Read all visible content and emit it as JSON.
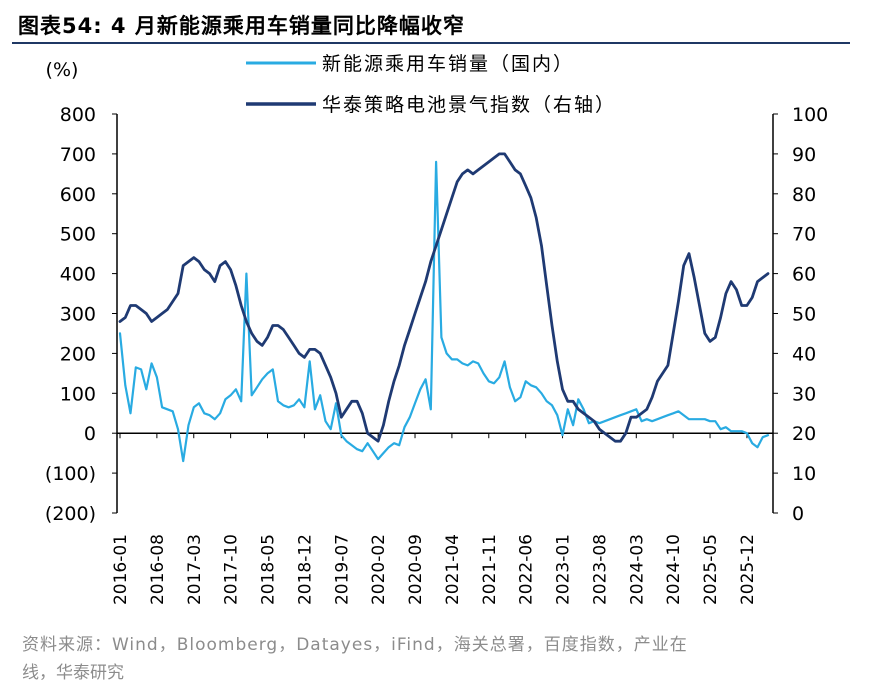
{
  "figure": {
    "title": "图表54:  4 月新能源乘用车销量同比降幅收窄",
    "source": "资料来源：Wind，Bloomberg，Datayes，iFind，海关总署，百度指数，产业在",
    "source_cut": "线，华泰研究"
  },
  "chart_data": {
    "type": "line",
    "left_axis_unit": "(%)",
    "left_ylim": [
      -200,
      800
    ],
    "left_ticks": [
      "800",
      "700",
      "600",
      "500",
      "400",
      "300",
      "200",
      "100",
      "0",
      "(100)",
      "(200)"
    ],
    "right_ylim": [
      0,
      100
    ],
    "right_ticks": [
      "100",
      "90",
      "80",
      "70",
      "60",
      "50",
      "40",
      "30",
      "20",
      "10",
      "0"
    ],
    "x_ticks": [
      "2016-01",
      "2016-08",
      "2017-03",
      "2017-10",
      "2018-05",
      "2018-12",
      "2019-07",
      "2020-02",
      "2020-09",
      "2021-04",
      "2021-11",
      "2022-06",
      "2023-01",
      "2023-08",
      "2024-03",
      "2024-10",
      "2025-05",
      "2025-12"
    ],
    "legend_placement": "top-center",
    "colors": {
      "nev_sales": "#29abe2",
      "ht_index": "#1f3a73",
      "axis": "#000000"
    },
    "series": [
      {
        "name": "新能源乘用车销量（国内）",
        "axis": "left",
        "color": "#29abe2",
        "values": [
          {
            "x": "2016-01",
            "y": 250
          },
          {
            "x": "2016-02",
            "y": 120
          },
          {
            "x": "2016-03",
            "y": 50
          },
          {
            "x": "2016-04",
            "y": 165
          },
          {
            "x": "2016-05",
            "y": 160
          },
          {
            "x": "2016-06",
            "y": 110
          },
          {
            "x": "2016-07",
            "y": 175
          },
          {
            "x": "2016-08",
            "y": 140
          },
          {
            "x": "2016-09",
            "y": 65
          },
          {
            "x": "2016-10",
            "y": 60
          },
          {
            "x": "2016-11",
            "y": 55
          },
          {
            "x": "2016-12",
            "y": 10
          },
          {
            "x": "2017-01",
            "y": -70
          },
          {
            "x": "2017-02",
            "y": 20
          },
          {
            "x": "2017-03",
            "y": 65
          },
          {
            "x": "2017-04",
            "y": 75
          },
          {
            "x": "2017-05",
            "y": 50
          },
          {
            "x": "2017-06",
            "y": 45
          },
          {
            "x": "2017-07",
            "y": 35
          },
          {
            "x": "2017-08",
            "y": 50
          },
          {
            "x": "2017-09",
            "y": 85
          },
          {
            "x": "2017-10",
            "y": 95
          },
          {
            "x": "2017-11",
            "y": 110
          },
          {
            "x": "2017-12",
            "y": 80
          },
          {
            "x": "2018-01",
            "y": 400
          },
          {
            "x": "2018-02",
            "y": 95
          },
          {
            "x": "2018-03",
            "y": 115
          },
          {
            "x": "2018-04",
            "y": 135
          },
          {
            "x": "2018-05",
            "y": 150
          },
          {
            "x": "2018-06",
            "y": 160
          },
          {
            "x": "2018-07",
            "y": 80
          },
          {
            "x": "2018-08",
            "y": 70
          },
          {
            "x": "2018-09",
            "y": 65
          },
          {
            "x": "2018-10",
            "y": 70
          },
          {
            "x": "2018-11",
            "y": 85
          },
          {
            "x": "2018-12",
            "y": 65
          },
          {
            "x": "2019-01",
            "y": 180
          },
          {
            "x": "2019-02",
            "y": 60
          },
          {
            "x": "2019-03",
            "y": 95
          },
          {
            "x": "2019-04",
            "y": 30
          },
          {
            "x": "2019-05",
            "y": 10
          },
          {
            "x": "2019-06",
            "y": 75
          },
          {
            "x": "2019-07",
            "y": -5
          },
          {
            "x": "2019-08",
            "y": -20
          },
          {
            "x": "2019-09",
            "y": -30
          },
          {
            "x": "2019-10",
            "y": -40
          },
          {
            "x": "2019-11",
            "y": -45
          },
          {
            "x": "2019-12",
            "y": -25
          },
          {
            "x": "2020-01",
            "y": -45
          },
          {
            "x": "2020-02",
            "y": -65
          },
          {
            "x": "2020-03",
            "y": -50
          },
          {
            "x": "2020-04",
            "y": -35
          },
          {
            "x": "2020-05",
            "y": -25
          },
          {
            "x": "2020-06",
            "y": -30
          },
          {
            "x": "2020-07",
            "y": 15
          },
          {
            "x": "2020-08",
            "y": 40
          },
          {
            "x": "2020-09",
            "y": 75
          },
          {
            "x": "2020-10",
            "y": 110
          },
          {
            "x": "2020-11",
            "y": 135
          },
          {
            "x": "2020-12",
            "y": 60
          },
          {
            "x": "2021-01",
            "y": 680
          },
          {
            "x": "2021-02",
            "y": 240
          },
          {
            "x": "2021-03",
            "y": 200
          },
          {
            "x": "2021-04",
            "y": 185
          },
          {
            "x": "2021-05",
            "y": 185
          },
          {
            "x": "2021-06",
            "y": 175
          },
          {
            "x": "2021-07",
            "y": 170
          },
          {
            "x": "2021-08",
            "y": 180
          },
          {
            "x": "2021-09",
            "y": 175
          },
          {
            "x": "2021-10",
            "y": 150
          },
          {
            "x": "2021-11",
            "y": 130
          },
          {
            "x": "2021-12",
            "y": 125
          },
          {
            "x": "2022-01",
            "y": 140
          },
          {
            "x": "2022-02",
            "y": 180
          },
          {
            "x": "2022-03",
            "y": 115
          },
          {
            "x": "2022-04",
            "y": 80
          },
          {
            "x": "2022-05",
            "y": 90
          },
          {
            "x": "2022-06",
            "y": 130
          },
          {
            "x": "2022-07",
            "y": 120
          },
          {
            "x": "2022-08",
            "y": 115
          },
          {
            "x": "2022-09",
            "y": 100
          },
          {
            "x": "2022-10",
            "y": 80
          },
          {
            "x": "2022-11",
            "y": 70
          },
          {
            "x": "2022-12",
            "y": 45
          },
          {
            "x": "2023-01",
            "y": -5
          },
          {
            "x": "2023-02",
            "y": 60
          },
          {
            "x": "2023-03",
            "y": 20
          },
          {
            "x": "2023-04",
            "y": 85
          },
          {
            "x": "2023-05",
            "y": 60
          },
          {
            "x": "2023-06",
            "y": 25
          },
          {
            "x": "2023-07",
            "y": 30
          },
          {
            "x": "2023-08",
            "y": 25
          },
          {
            "x": "2023-09",
            "y": 30
          },
          {
            "x": "2023-10",
            "y": 35
          },
          {
            "x": "2023-11",
            "y": 40
          },
          {
            "x": "2023-12",
            "y": 45
          },
          {
            "x": "2024-01",
            "y": 50
          },
          {
            "x": "2024-02",
            "y": 55
          },
          {
            "x": "2024-03",
            "y": 60
          },
          {
            "x": "2024-04",
            "y": 30
          },
          {
            "x": "2024-05",
            "y": 35
          },
          {
            "x": "2024-06",
            "y": 30
          },
          {
            "x": "2024-07",
            "y": 35
          },
          {
            "x": "2024-08",
            "y": 40
          },
          {
            "x": "2024-09",
            "y": 45
          },
          {
            "x": "2024-10",
            "y": 50
          },
          {
            "x": "2024-11",
            "y": 55
          },
          {
            "x": "2024-12",
            "y": 45
          },
          {
            "x": "2025-01",
            "y": 35
          },
          {
            "x": "2025-02",
            "y": 35
          },
          {
            "x": "2025-03",
            "y": 35
          },
          {
            "x": "2025-04",
            "y": 35
          },
          {
            "x": "2025-05",
            "y": 30
          },
          {
            "x": "2025-06",
            "y": 30
          },
          {
            "x": "2025-07",
            "y": 10
          },
          {
            "x": "2025-08",
            "y": 15
          },
          {
            "x": "2025-09",
            "y": 5
          },
          {
            "x": "2025-10",
            "y": 5
          },
          {
            "x": "2025-11",
            "y": 5
          },
          {
            "x": "2025-12",
            "y": 0
          },
          {
            "x": "2026-01",
            "y": -25
          },
          {
            "x": "2026-02",
            "y": -35
          },
          {
            "x": "2026-03",
            "y": -10
          },
          {
            "x": "2026-04",
            "y": -5
          }
        ]
      },
      {
        "name": "华泰策略电池景气指数（右轴）",
        "axis": "right",
        "color": "#1f3a73",
        "values": [
          {
            "x": "2016-01",
            "y": 48
          },
          {
            "x": "2016-02",
            "y": 49
          },
          {
            "x": "2016-03",
            "y": 52
          },
          {
            "x": "2016-04",
            "y": 52
          },
          {
            "x": "2016-05",
            "y": 51
          },
          {
            "x": "2016-06",
            "y": 50
          },
          {
            "x": "2016-07",
            "y": 48
          },
          {
            "x": "2016-08",
            "y": 49
          },
          {
            "x": "2016-09",
            "y": 50
          },
          {
            "x": "2016-10",
            "y": 51
          },
          {
            "x": "2016-11",
            "y": 53
          },
          {
            "x": "2016-12",
            "y": 55
          },
          {
            "x": "2017-01",
            "y": 62
          },
          {
            "x": "2017-02",
            "y": 63
          },
          {
            "x": "2017-03",
            "y": 64
          },
          {
            "x": "2017-04",
            "y": 63
          },
          {
            "x": "2017-05",
            "y": 61
          },
          {
            "x": "2017-06",
            "y": 60
          },
          {
            "x": "2017-07",
            "y": 58
          },
          {
            "x": "2017-08",
            "y": 62
          },
          {
            "x": "2017-09",
            "y": 63
          },
          {
            "x": "2017-10",
            "y": 61
          },
          {
            "x": "2017-11",
            "y": 57
          },
          {
            "x": "2017-12",
            "y": 52
          },
          {
            "x": "2018-01",
            "y": 48
          },
          {
            "x": "2018-02",
            "y": 45
          },
          {
            "x": "2018-03",
            "y": 43
          },
          {
            "x": "2018-04",
            "y": 42
          },
          {
            "x": "2018-05",
            "y": 44
          },
          {
            "x": "2018-06",
            "y": 47
          },
          {
            "x": "2018-07",
            "y": 47
          },
          {
            "x": "2018-08",
            "y": 46
          },
          {
            "x": "2018-09",
            "y": 44
          },
          {
            "x": "2018-10",
            "y": 42
          },
          {
            "x": "2018-11",
            "y": 40
          },
          {
            "x": "2018-12",
            "y": 39
          },
          {
            "x": "2019-01",
            "y": 41
          },
          {
            "x": "2019-02",
            "y": 41
          },
          {
            "x": "2019-03",
            "y": 40
          },
          {
            "x": "2019-04",
            "y": 37
          },
          {
            "x": "2019-05",
            "y": 34
          },
          {
            "x": "2019-06",
            "y": 30
          },
          {
            "x": "2019-07",
            "y": 24
          },
          {
            "x": "2019-08",
            "y": 26
          },
          {
            "x": "2019-09",
            "y": 28
          },
          {
            "x": "2019-10",
            "y": 28
          },
          {
            "x": "2019-11",
            "y": 25
          },
          {
            "x": "2019-12",
            "y": 20
          },
          {
            "x": "2020-01",
            "y": 19
          },
          {
            "x": "2020-02",
            "y": 18
          },
          {
            "x": "2020-03",
            "y": 22
          },
          {
            "x": "2020-04",
            "y": 28
          },
          {
            "x": "2020-05",
            "y": 33
          },
          {
            "x": "2020-06",
            "y": 37
          },
          {
            "x": "2020-07",
            "y": 42
          },
          {
            "x": "2020-08",
            "y": 46
          },
          {
            "x": "2020-09",
            "y": 50
          },
          {
            "x": "2020-10",
            "y": 54
          },
          {
            "x": "2020-11",
            "y": 58
          },
          {
            "x": "2020-12",
            "y": 63
          },
          {
            "x": "2021-01",
            "y": 67
          },
          {
            "x": "2021-02",
            "y": 71
          },
          {
            "x": "2021-03",
            "y": 75
          },
          {
            "x": "2021-04",
            "y": 79
          },
          {
            "x": "2021-05",
            "y": 83
          },
          {
            "x": "2021-06",
            "y": 85
          },
          {
            "x": "2021-07",
            "y": 86
          },
          {
            "x": "2021-08",
            "y": 85
          },
          {
            "x": "2021-09",
            "y": 86
          },
          {
            "x": "2021-10",
            "y": 87
          },
          {
            "x": "2021-11",
            "y": 88
          },
          {
            "x": "2021-12",
            "y": 89
          },
          {
            "x": "2022-01",
            "y": 90
          },
          {
            "x": "2022-02",
            "y": 90
          },
          {
            "x": "2022-03",
            "y": 88
          },
          {
            "x": "2022-04",
            "y": 86
          },
          {
            "x": "2022-05",
            "y": 85
          },
          {
            "x": "2022-06",
            "y": 82
          },
          {
            "x": "2022-07",
            "y": 79
          },
          {
            "x": "2022-08",
            "y": 74
          },
          {
            "x": "2022-09",
            "y": 67
          },
          {
            "x": "2022-10",
            "y": 57
          },
          {
            "x": "2022-11",
            "y": 47
          },
          {
            "x": "2022-12",
            "y": 38
          },
          {
            "x": "2023-01",
            "y": 31
          },
          {
            "x": "2023-02",
            "y": 28
          },
          {
            "x": "2023-03",
            "y": 28
          },
          {
            "x": "2023-04",
            "y": 26
          },
          {
            "x": "2023-05",
            "y": 25
          },
          {
            "x": "2023-06",
            "y": 24
          },
          {
            "x": "2023-07",
            "y": 23
          },
          {
            "x": "2023-08",
            "y": 21
          },
          {
            "x": "2023-09",
            "y": 20
          },
          {
            "x": "2023-10",
            "y": 19
          },
          {
            "x": "2023-11",
            "y": 18
          },
          {
            "x": "2023-12",
            "y": 18
          },
          {
            "x": "2024-01",
            "y": 20
          },
          {
            "x": "2024-02",
            "y": 24
          },
          {
            "x": "2024-03",
            "y": 24
          },
          {
            "x": "2024-04",
            "y": 25
          },
          {
            "x": "2024-05",
            "y": 26
          },
          {
            "x": "2024-06",
            "y": 29
          },
          {
            "x": "2024-07",
            "y": 33
          },
          {
            "x": "2024-08",
            "y": 35
          },
          {
            "x": "2024-09",
            "y": 37
          },
          {
            "x": "2024-10",
            "y": 45
          },
          {
            "x": "2024-11",
            "y": 53
          },
          {
            "x": "2024-12",
            "y": 62
          },
          {
            "x": "2025-01",
            "y": 65
          },
          {
            "x": "2025-02",
            "y": 59
          },
          {
            "x": "2025-03",
            "y": 52
          },
          {
            "x": "2025-04",
            "y": 45
          },
          {
            "x": "2025-05",
            "y": 43
          },
          {
            "x": "2025-06",
            "y": 44
          },
          {
            "x": "2025-07",
            "y": 49
          },
          {
            "x": "2025-08",
            "y": 55
          },
          {
            "x": "2025-09",
            "y": 58
          },
          {
            "x": "2025-10",
            "y": 56
          },
          {
            "x": "2025-11",
            "y": 52
          },
          {
            "x": "2025-12",
            "y": 52
          },
          {
            "x": "2026-01",
            "y": 54
          },
          {
            "x": "2026-02",
            "y": 58
          },
          {
            "x": "2026-03",
            "y": 59
          },
          {
            "x": "2026-04",
            "y": 60
          }
        ]
      }
    ]
  }
}
